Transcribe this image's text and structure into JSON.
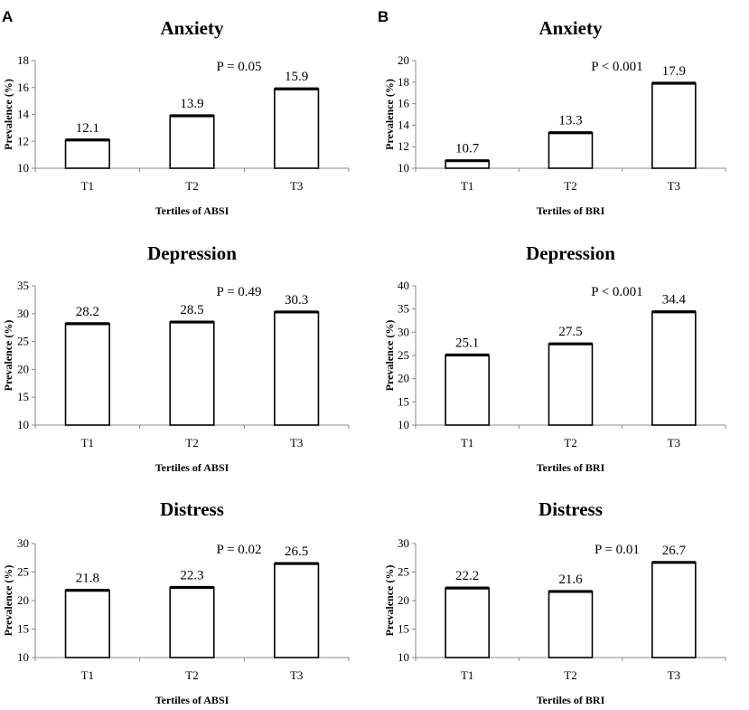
{
  "panel_labels": [
    "A",
    "B"
  ],
  "chart_data": [
    {
      "type": "bar",
      "panel": "A",
      "title": "Anxiety",
      "categories": [
        "T1",
        "T2",
        "T3"
      ],
      "values": [
        12.1,
        13.9,
        15.9
      ],
      "value_labels": [
        "12.1",
        "13.9",
        "15.9"
      ],
      "xlabel": "Tertiles of ABSI",
      "ylabel": "Prevalence (%)",
      "ylim": [
        10,
        18
      ],
      "yticks": [
        10,
        12,
        14,
        16,
        18
      ],
      "annotation": "P = 0.05",
      "grid": false
    },
    {
      "type": "bar",
      "panel": "B",
      "title": "Anxiety",
      "categories": [
        "T1",
        "T2",
        "T3"
      ],
      "values": [
        10.7,
        13.3,
        17.9
      ],
      "value_labels": [
        "10.7",
        "13.3",
        "17.9"
      ],
      "xlabel": "Tertiles of BRI",
      "ylabel": "Prevalence (%)",
      "ylim": [
        10,
        20
      ],
      "yticks": [
        10,
        12,
        14,
        16,
        18,
        20
      ],
      "annotation": "P < 0.001",
      "grid": false
    },
    {
      "type": "bar",
      "panel": "A",
      "title": "Depression",
      "categories": [
        "T1",
        "T2",
        "T3"
      ],
      "values": [
        28.2,
        28.5,
        30.3
      ],
      "value_labels": [
        "28.2",
        "28.5",
        "30.3"
      ],
      "xlabel": "Tertiles of ABSI",
      "ylabel": "Prevalence (%)",
      "ylim": [
        10,
        35
      ],
      "yticks": [
        10,
        15,
        20,
        25,
        30,
        35
      ],
      "annotation": "P = 0.49",
      "grid": false
    },
    {
      "type": "bar",
      "panel": "B",
      "title": "Depression",
      "categories": [
        "T1",
        "T2",
        "T3"
      ],
      "values": [
        25.1,
        27.5,
        34.4
      ],
      "value_labels": [
        "25.1",
        "27.5",
        "34.4"
      ],
      "xlabel": "Tertiles of BRI",
      "ylabel": "Prevalence (%)",
      "ylim": [
        10,
        40
      ],
      "yticks": [
        10,
        15,
        20,
        25,
        30,
        35,
        40
      ],
      "annotation": "P < 0.001",
      "grid": false
    },
    {
      "type": "bar",
      "panel": "A",
      "title": "Distress",
      "categories": [
        "T1",
        "T2",
        "T3"
      ],
      "values": [
        21.8,
        22.3,
        26.5
      ],
      "value_labels": [
        "21.8",
        "22.3",
        "26.5"
      ],
      "xlabel": "Tertiles of ABSI",
      "ylabel": "Prevalence (%)",
      "ylim": [
        10,
        30
      ],
      "yticks": [
        10,
        15,
        20,
        25,
        30
      ],
      "annotation": "P = 0.02",
      "grid": false
    },
    {
      "type": "bar",
      "panel": "B",
      "title": "Distress",
      "categories": [
        "T1",
        "T2",
        "T3"
      ],
      "values": [
        22.2,
        21.6,
        26.7
      ],
      "value_labels": [
        "22.2",
        "21.6",
        "26.7"
      ],
      "xlabel": "Tertiles of BRI",
      "ylabel": "Prevalence (%)",
      "ylim": [
        10,
        30
      ],
      "yticks": [
        10,
        15,
        20,
        25,
        30
      ],
      "annotation": "P = 0.01",
      "grid": false
    }
  ]
}
